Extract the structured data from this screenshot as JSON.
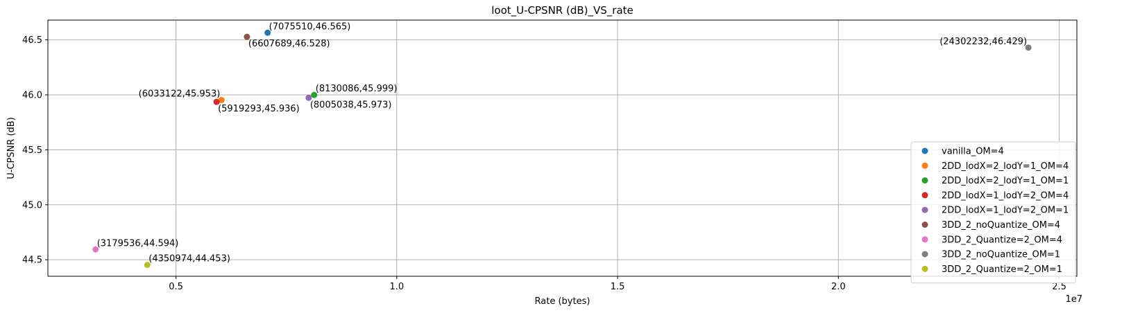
{
  "chart_data": {
    "type": "scatter",
    "title": "loot_U-CPSNR (dB)_VS_rate",
    "xlabel": "Rate (bytes)",
    "ylabel": "U-CPSNR (dB)",
    "x_offset_label": "1e7",
    "xlim": [
      2100000,
      25400000
    ],
    "ylim": [
      44.35,
      46.68
    ],
    "xticks": [
      5000000,
      10000000,
      15000000,
      20000000,
      25000000
    ],
    "xtick_labels": [
      "0.5",
      "1.0",
      "1.5",
      "2.0",
      "2.5"
    ],
    "yticks": [
      44.5,
      45.0,
      45.5,
      46.0,
      46.5
    ],
    "ytick_labels": [
      "44.5",
      "45.0",
      "45.5",
      "46.0",
      "46.5"
    ],
    "grid": true,
    "legend_position": "lower right",
    "series": [
      {
        "name": "vanilla_OM=4",
        "color": "#1f77b4",
        "x": 7075510,
        "y": 46.565,
        "annotation": "(7075510,46.565)",
        "anchor": "right-above"
      },
      {
        "name": "2DD_lodX=2_lodY=1_OM=4",
        "color": "#ff7f0e",
        "x": 6033122,
        "y": 45.953,
        "annotation": "(6033122,45.953)",
        "anchor": "left-above"
      },
      {
        "name": "2DD_lodX=2_lodY=1_OM=1",
        "color": "#2ca02c",
        "x": 8130086,
        "y": 45.999,
        "annotation": "(8130086,45.999)",
        "anchor": "right-above"
      },
      {
        "name": "2DD_lodX=1_lodY=2_OM=4",
        "color": "#d62728",
        "x": 5919293,
        "y": 45.936,
        "annotation": "(5919293,45.936)",
        "anchor": "right-below"
      },
      {
        "name": "2DD_lodX=1_lodY=2_OM=1",
        "color": "#9467bd",
        "x": 8005038,
        "y": 45.973,
        "annotation": "(8005038,45.973)",
        "anchor": "right-below"
      },
      {
        "name": "3DD_2_noQuantize_OM=4",
        "color": "#8c564b",
        "x": 6607689,
        "y": 46.528,
        "annotation": "(6607689,46.528)",
        "anchor": "right-below"
      },
      {
        "name": "3DD_2_Quantize=2_OM=4",
        "color": "#e377c2",
        "x": 3179536,
        "y": 44.594,
        "annotation": "(3179536,44.594)",
        "anchor": "right-above"
      },
      {
        "name": "3DD_2_noQuantize_OM=1",
        "color": "#7f7f7f",
        "x": 24302232,
        "y": 46.429,
        "annotation": "(24302232,46.429)",
        "anchor": "left-above"
      },
      {
        "name": "3DD_2_Quantize=2_OM=1",
        "color": "#bcbd22",
        "x": 4350974,
        "y": 44.453,
        "annotation": "(4350974,44.453)",
        "anchor": "right-above"
      }
    ]
  }
}
